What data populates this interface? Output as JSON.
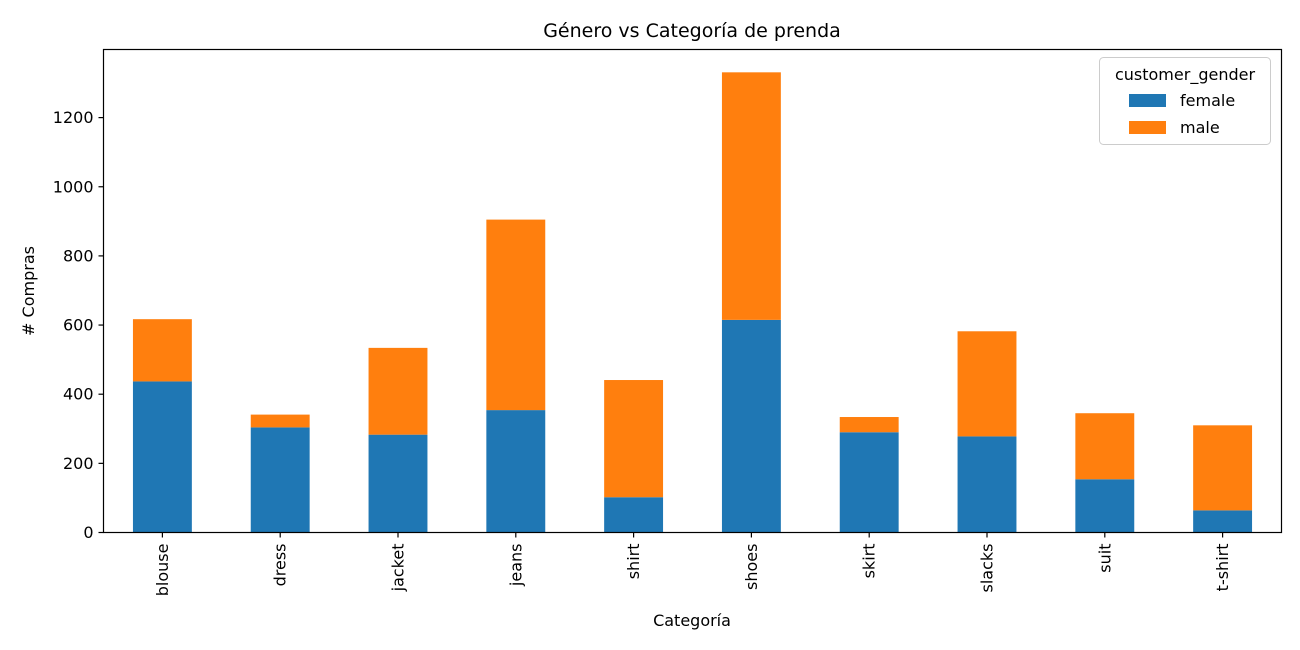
{
  "chart_data": {
    "type": "bar",
    "stacked": true,
    "title": "Género vs Categoría de prenda",
    "xlabel": "Categoría",
    "ylabel": "# Compras",
    "categories": [
      "blouse",
      "dress",
      "jacket",
      "jeans",
      "shirt",
      "shoes",
      "skirt",
      "slacks",
      "suit",
      "t-shirt"
    ],
    "series": [
      {
        "name": "female",
        "color": "#1f77b4",
        "values": [
          437,
          304,
          283,
          354,
          102,
          615,
          290,
          278,
          154,
          64
        ]
      },
      {
        "name": "male",
        "color": "#ff7f0e",
        "values": [
          180,
          37,
          251,
          551,
          339,
          716,
          44,
          304,
          191,
          246
        ]
      }
    ],
    "yticks": [
      0,
      200,
      400,
      600,
      800,
      1000,
      1200
    ],
    "ylim": [
      0,
      1397
    ],
    "legend": {
      "title": "customer_gender",
      "position": "top-right"
    },
    "grid": false
  }
}
